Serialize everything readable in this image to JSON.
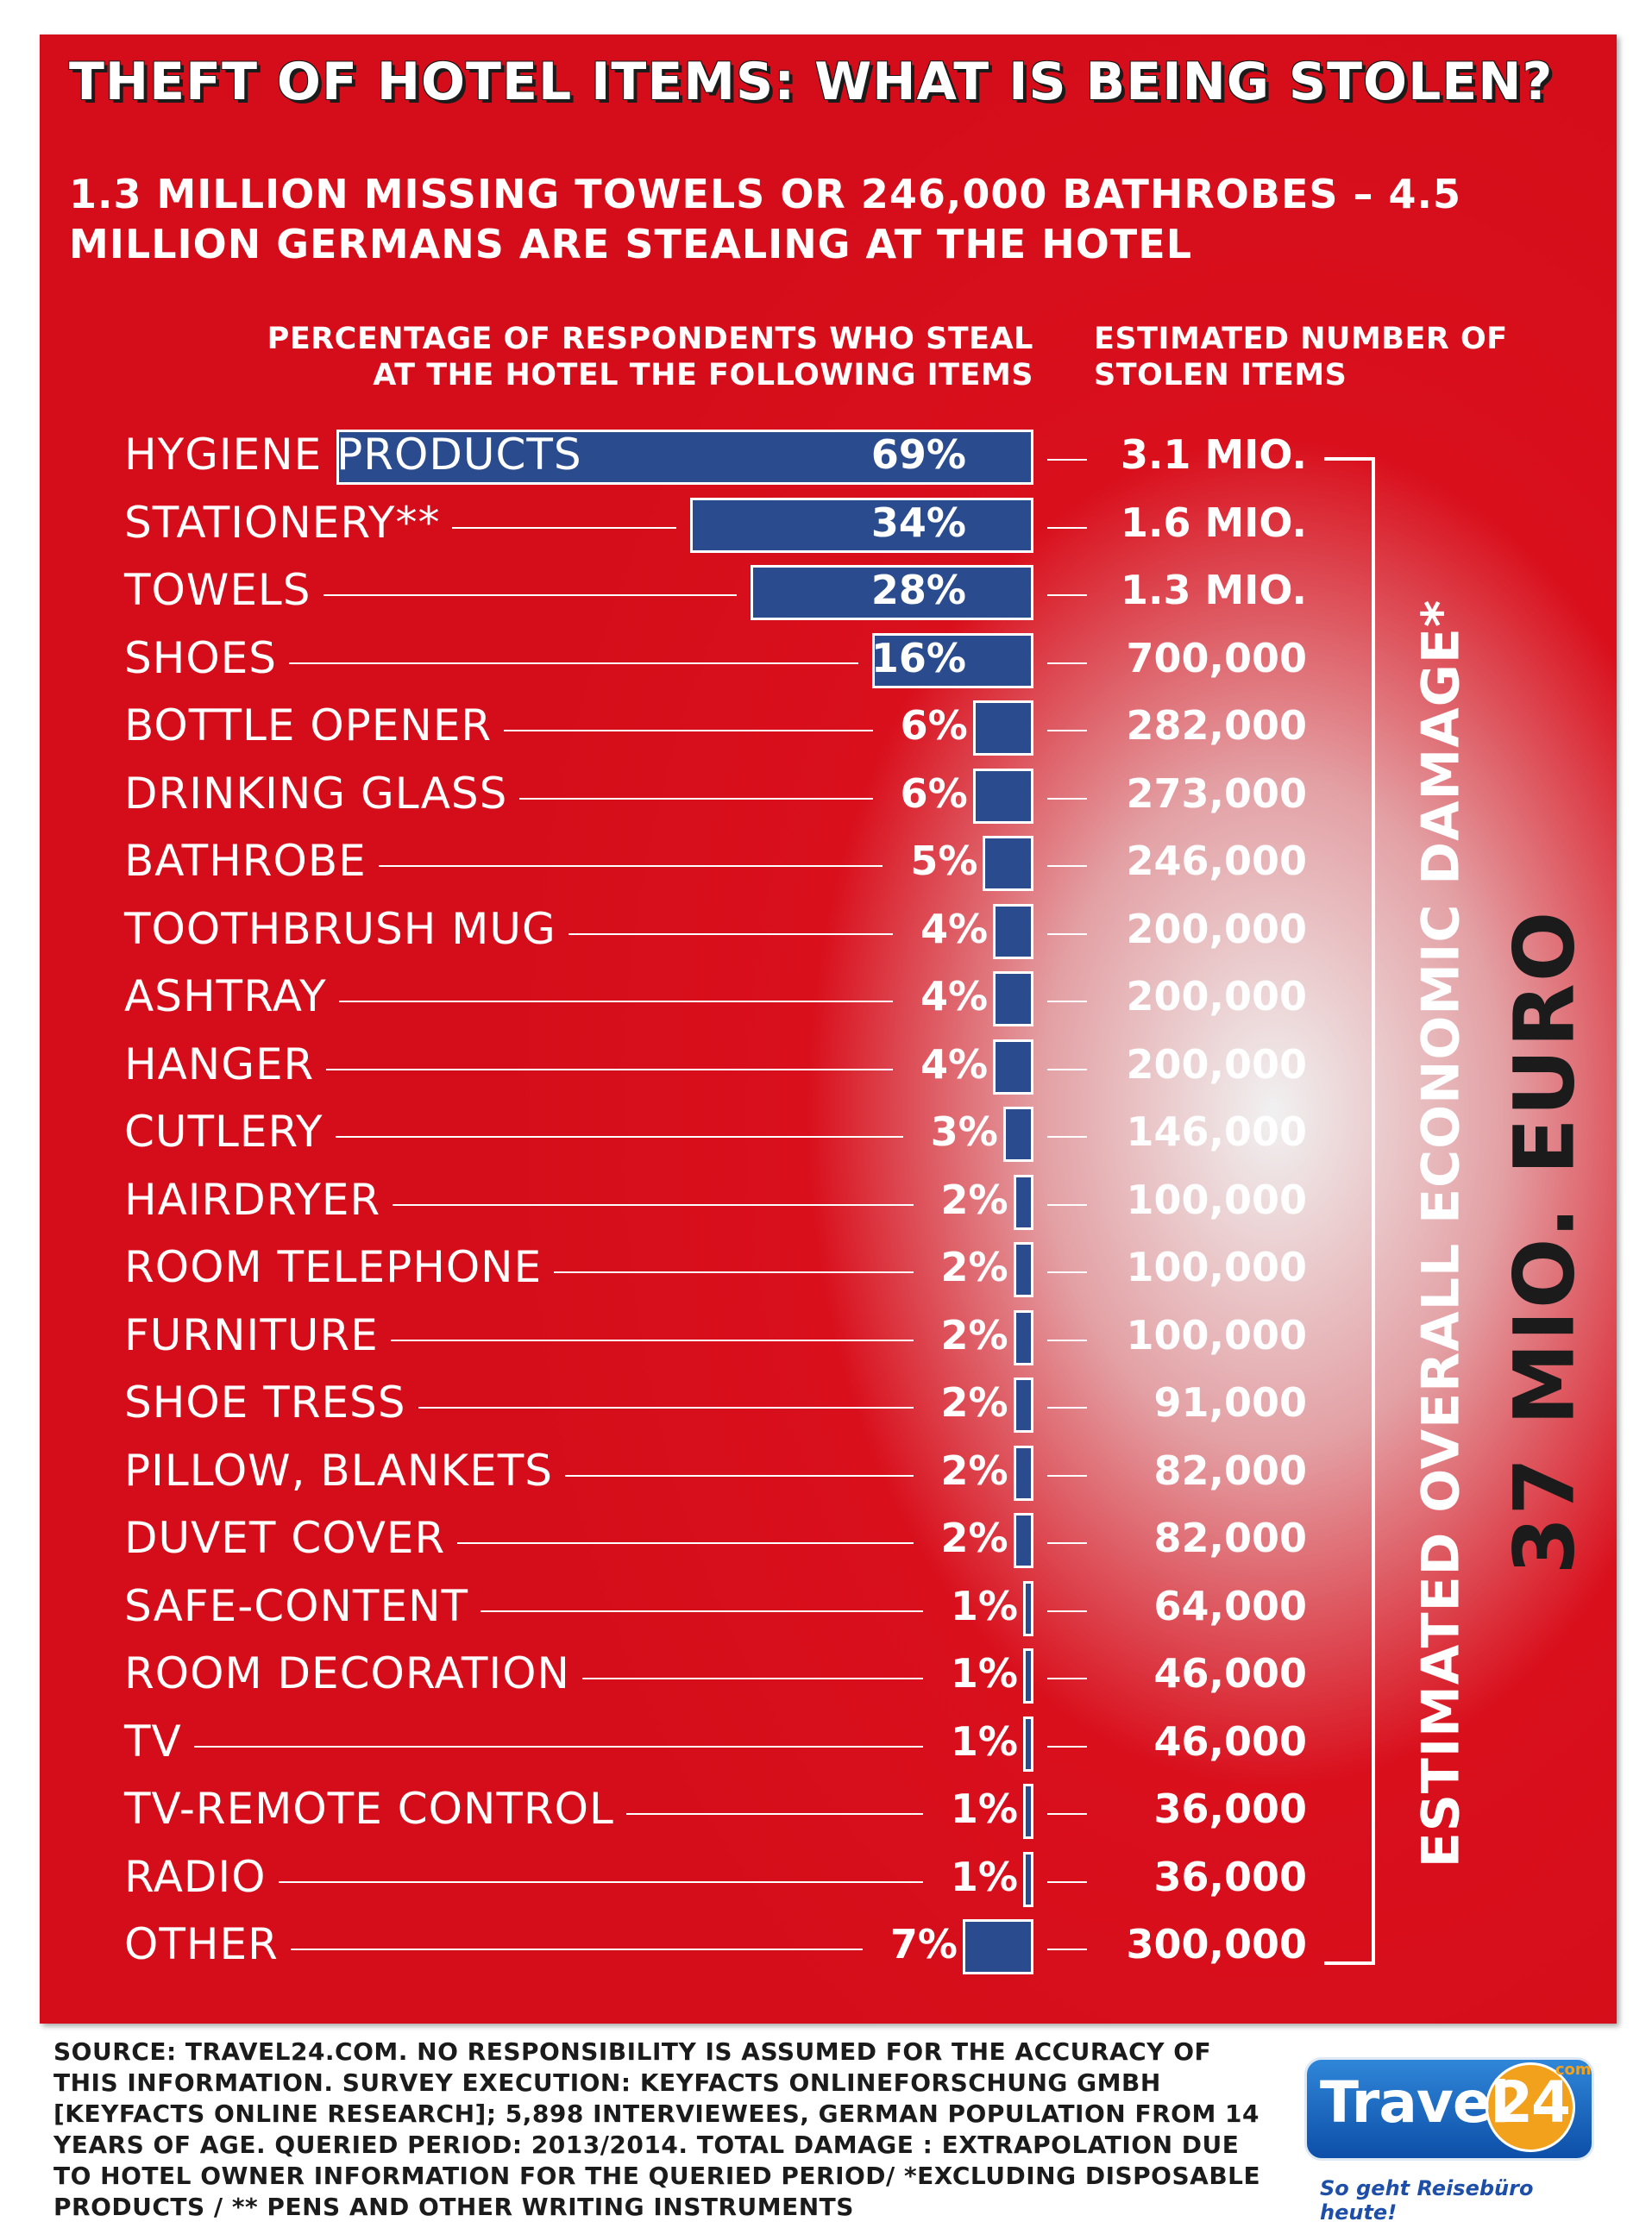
{
  "title": "THEFT OF HOTEL ITEMS: WHAT IS BEING STOLEN?",
  "subtitle": "1.3 MILLION MISSING TOWELS OR 246,000 BATHROBES – 4.5 MILLION GERMANS ARE STEALING AT THE HOTEL",
  "left_header": "PERCENTAGE OF RESPONDENTS WHO STEAL AT THE HOTEL THE FOLLOWING ITEMS",
  "right_header": "ESTIMATED NUMBER OF STOLEN ITEMS",
  "damage_label": "ESTIMATED OVERALL ECONOMIC DAMAGE*",
  "damage_value": "37 MIO. EURO",
  "source": "SOURCE: TRAVEL24.COM. NO RESPONSIBILITY IS ASSUMED FOR THE ACCURACY OF THIS INFORMATION. SURVEY EXECUTION: KEYFACTS ONLINEFORSCHUNG GMBH [KEYFACTS ONLINE RESEARCH]; 5,898 INTERVIEWEES, GERMAN POPULATION FROM 14 YEARS OF AGE. QUERIED PERIOD: 2013/2014. TOTAL DAMAGE : EXTRAPOLATION DUE TO HOTEL OWNER INFORMATION FOR THE QUERIED PERIOD/ *EXCLUDING DISPOSABLE PRODUCTS / ** PENS AND OTHER WRITING INSTRUMENTS",
  "logo": {
    "brand": "Travel",
    "number": "24",
    "domain": ".com",
    "tagline": "So geht Reisebüro heute!"
  },
  "colors": {
    "background": "#d90f1c",
    "bar": "#2a4c8f",
    "text": "#ffffff",
    "dark_text": "#1b1b1b"
  },
  "chart_data": {
    "type": "bar",
    "orientation": "horizontal",
    "title": "THEFT OF HOTEL ITEMS: WHAT IS BEING STOLEN?",
    "xlabel": "PERCENTAGE OF RESPONDENTS WHO STEAL AT THE HOTEL THE FOLLOWING ITEMS",
    "xlim": [
      0,
      69
    ],
    "grid": false,
    "categories": [
      "HYGIENE PRODUCTS",
      "STATIONERY**",
      "TOWELS",
      "SHOES",
      "BOTTLE OPENER",
      "DRINKING GLASS",
      "BATHROBE",
      "TOOTHBRUSH MUG",
      "ASHTRAY",
      "HANGER",
      "CUTLERY",
      "HAIRDRYER",
      "ROOM TELEPHONE",
      "FURNITURE",
      "SHOE TRESS",
      "PILLOW, BLANKETS",
      "DUVET COVER",
      "SAFE-CONTENT",
      "ROOM DECORATION",
      "TV",
      "TV-REMOTE CONTROL",
      "RADIO",
      "OTHER"
    ],
    "values": [
      69,
      34,
      28,
      16,
      6,
      6,
      5,
      4,
      4,
      4,
      3,
      2,
      2,
      2,
      2,
      2,
      2,
      1,
      1,
      1,
      1,
      1,
      7
    ],
    "percent_labels": [
      "69%",
      "34%",
      "28%",
      "16%",
      "6%",
      "6%",
      "5%",
      "4%",
      "4%",
      "4%",
      "3%",
      "2%",
      "2%",
      "2%",
      "2%",
      "2%",
      "2%",
      "1%",
      "1%",
      "1%",
      "1%",
      "1%",
      "7%"
    ],
    "stolen_items": [
      "3.1 MIO.",
      "1.6 MIO.",
      "1.3 MIO.",
      "700,000",
      "282,000",
      "273,000",
      "246,000",
      "200,000",
      "200,000",
      "200,000",
      "146,000",
      "100,000",
      "100,000",
      "100,000",
      "91,000",
      "82,000",
      "82,000",
      "64,000",
      "46,000",
      "46,000",
      "36,000",
      "36,000",
      "300,000"
    ]
  }
}
